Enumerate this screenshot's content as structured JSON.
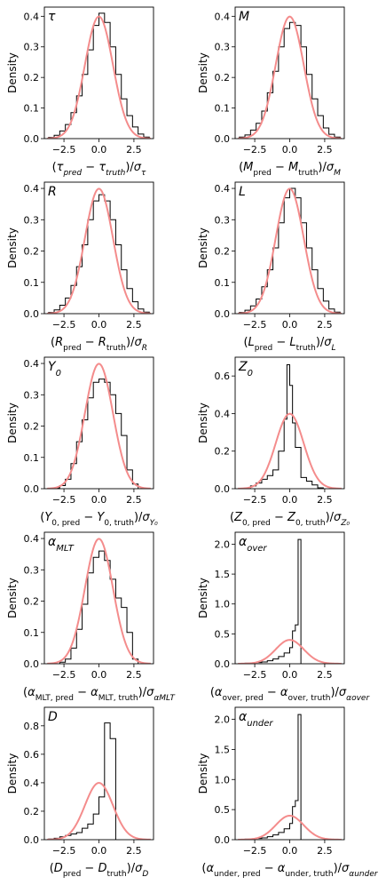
{
  "chart_data": [
    {
      "type": "histogram",
      "panel_label": "τ",
      "xlabel": "(τ_pred − τ_truth)/σ_τ",
      "ylabel": "Density",
      "xlim": [
        -3.9,
        3.9
      ],
      "ylim": [
        0,
        0.43
      ],
      "xticks": [
        -2.5,
        0.0,
        2.5
      ],
      "xtick_labels": [
        "−2.5",
        "0.0",
        "2.5"
      ],
      "yticks": [
        0,
        0.1,
        0.2,
        0.3,
        0.4
      ],
      "ytick_labels": [
        "0.0",
        "0.1",
        "0.2",
        "0.3",
        "0.4"
      ],
      "bin_edges": [
        -3.6,
        -3.2,
        -2.8,
        -2.4,
        -2.0,
        -1.6,
        -1.2,
        -0.8,
        -0.4,
        0.0,
        0.4,
        0.8,
        1.2,
        1.6,
        2.0,
        2.4,
        2.8,
        3.2,
        3.6
      ],
      "density": [
        0.004,
        0.011,
        0.025,
        0.046,
        0.085,
        0.14,
        0.21,
        0.29,
        0.37,
        0.41,
        0.38,
        0.3,
        0.21,
        0.13,
        0.075,
        0.038,
        0.015,
        0.005
      ],
      "gaussian": {
        "mean": 0,
        "sigma": 1,
        "color": "#f48c8c"
      }
    },
    {
      "type": "histogram",
      "panel_label": "M",
      "xlabel": "(M_pred − M_truth)/σ_M",
      "ylabel": "Density",
      "xlim": [
        -3.9,
        3.9
      ],
      "ylim": [
        0,
        0.43
      ],
      "xticks": [
        -2.5,
        0.0,
        2.5
      ],
      "xtick_labels": [
        "−2.5",
        "0.0",
        "2.5"
      ],
      "yticks": [
        0,
        0.1,
        0.2,
        0.3,
        0.4
      ],
      "ytick_labels": [
        "0.0",
        "0.1",
        "0.2",
        "0.3",
        "0.4"
      ],
      "bin_edges": [
        -3.6,
        -3.2,
        -2.8,
        -2.4,
        -2.0,
        -1.6,
        -1.2,
        -0.8,
        -0.4,
        0.0,
        0.4,
        0.8,
        1.2,
        1.6,
        2.0,
        2.4,
        2.8,
        3.2,
        3.6
      ],
      "density": [
        0.005,
        0.012,
        0.028,
        0.05,
        0.09,
        0.15,
        0.22,
        0.3,
        0.36,
        0.38,
        0.37,
        0.3,
        0.21,
        0.13,
        0.075,
        0.035,
        0.014,
        0.005
      ],
      "gaussian": {
        "mean": 0,
        "sigma": 1,
        "color": "#f48c8c"
      }
    },
    {
      "type": "histogram",
      "panel_label": "R",
      "xlabel": "(R_pred − R_truth)/σ_R",
      "ylabel": "Density",
      "xlim": [
        -3.9,
        3.9
      ],
      "ylim": [
        0,
        0.42
      ],
      "xticks": [
        -2.5,
        0.0,
        2.5
      ],
      "xtick_labels": [
        "−2.5",
        "0.0",
        "2.5"
      ],
      "yticks": [
        0,
        0.1,
        0.2,
        0.3,
        0.4
      ],
      "ytick_labels": [
        "0.0",
        "0.1",
        "0.2",
        "0.3",
        "0.4"
      ],
      "bin_edges": [
        -3.6,
        -3.2,
        -2.8,
        -2.4,
        -2.0,
        -1.6,
        -1.2,
        -0.8,
        -0.4,
        0.0,
        0.4,
        0.8,
        1.2,
        1.6,
        2.0,
        2.4,
        2.8,
        3.2,
        3.6
      ],
      "density": [
        0.004,
        0.012,
        0.027,
        0.05,
        0.09,
        0.15,
        0.22,
        0.3,
        0.36,
        0.38,
        0.36,
        0.3,
        0.22,
        0.14,
        0.08,
        0.038,
        0.015,
        0.005
      ],
      "gaussian": {
        "mean": 0,
        "sigma": 1,
        "color": "#f48c8c"
      }
    },
    {
      "type": "histogram",
      "panel_label": "L",
      "xlabel": "(L_pred − L_truth)/σ_L",
      "ylabel": "Density",
      "xlim": [
        -3.9,
        3.9
      ],
      "ylim": [
        0,
        0.42
      ],
      "xticks": [
        -2.5,
        0.0,
        2.5
      ],
      "xtick_labels": [
        "−2.5",
        "0.0",
        "2.5"
      ],
      "yticks": [
        0,
        0.1,
        0.2,
        0.3,
        0.4
      ],
      "ytick_labels": [
        "0.0",
        "0.1",
        "0.2",
        "0.3",
        "0.4"
      ],
      "bin_edges": [
        -3.6,
        -3.2,
        -2.8,
        -2.4,
        -2.0,
        -1.6,
        -1.2,
        -0.8,
        -0.4,
        0.0,
        0.4,
        0.8,
        1.2,
        1.6,
        2.0,
        2.4,
        2.8,
        3.2,
        3.6
      ],
      "density": [
        0.004,
        0.011,
        0.025,
        0.047,
        0.086,
        0.14,
        0.21,
        0.29,
        0.37,
        0.4,
        0.37,
        0.29,
        0.21,
        0.14,
        0.08,
        0.04,
        0.015,
        0.005
      ],
      "gaussian": {
        "mean": 0,
        "sigma": 1,
        "color": "#f48c8c"
      }
    },
    {
      "type": "histogram",
      "panel_label": "Y₀",
      "xlabel": "(Y_0,pred − Y_0,truth)/σ_Y0",
      "ylabel": "Density",
      "xlim": [
        -3.9,
        3.9
      ],
      "ylim": [
        0,
        0.42
      ],
      "xticks": [
        -2.5,
        0.0,
        2.5
      ],
      "xtick_labels": [
        "−2.5",
        "0.0",
        "2.5"
      ],
      "yticks": [
        0,
        0.1,
        0.2,
        0.3,
        0.4
      ],
      "ytick_labels": [
        "0.0",
        "0.1",
        "0.2",
        "0.3",
        "0.4"
      ],
      "bin_edges": [
        -3.6,
        -3.2,
        -2.8,
        -2.4,
        -2.0,
        -1.6,
        -1.2,
        -0.8,
        -0.4,
        0.0,
        0.4,
        0.8,
        1.2,
        1.6,
        2.0,
        2.4,
        2.8,
        3.2,
        3.6
      ],
      "density": [
        0.0,
        0.003,
        0.01,
        0.03,
        0.08,
        0.15,
        0.22,
        0.29,
        0.34,
        0.35,
        0.34,
        0.3,
        0.24,
        0.17,
        0.06,
        0.015,
        0.0,
        0.0
      ],
      "gaussian": {
        "mean": 0,
        "sigma": 1,
        "color": "#f48c8c"
      }
    },
    {
      "type": "histogram",
      "panel_label": "Z₀",
      "xlabel": "(Z_0,pred − Z_0,truth)/σ_Z0",
      "ylabel": "Density",
      "xlim": [
        -3.9,
        3.9
      ],
      "ylim": [
        0,
        0.7
      ],
      "xticks": [
        -2.5,
        0.0,
        2.5
      ],
      "xtick_labels": [
        "−2.5",
        "0.0",
        "2.5"
      ],
      "yticks": [
        0,
        0.2,
        0.4,
        0.6
      ],
      "ytick_labels": [
        "0.0",
        "0.2",
        "0.4",
        "0.6"
      ],
      "bin_edges": [
        -3.2,
        -2.8,
        -2.4,
        -2.0,
        -1.6,
        -1.2,
        -0.8,
        -0.4,
        -0.2,
        0.0,
        0.2,
        0.4,
        0.8,
        1.2,
        1.6,
        2.0,
        2.4
      ],
      "density": [
        0.005,
        0.015,
        0.03,
        0.05,
        0.07,
        0.1,
        0.2,
        0.37,
        0.66,
        0.55,
        0.35,
        0.22,
        0.06,
        0.04,
        0.02,
        0.005
      ],
      "gaussian": {
        "mean": 0,
        "sigma": 1,
        "color": "#f48c8c"
      }
    },
    {
      "type": "histogram",
      "panel_label": "α_MLT",
      "xlabel": "(α_MLT,pred − α_MLT,truth)/σ_αMLT",
      "ylabel": "Density",
      "xlim": [
        -3.9,
        3.9
      ],
      "ylim": [
        0,
        0.42
      ],
      "xticks": [
        -2.5,
        0.0,
        2.5
      ],
      "xtick_labels": [
        "−2.5",
        "0.0",
        "2.5"
      ],
      "yticks": [
        0,
        0.1,
        0.2,
        0.3,
        0.4
      ],
      "ytick_labels": [
        "0.0",
        "0.1",
        "0.2",
        "0.3",
        "0.4"
      ],
      "bin_edges": [
        -2.8,
        -2.4,
        -2.0,
        -1.6,
        -1.2,
        -0.8,
        -0.4,
        0.0,
        0.4,
        0.8,
        1.2,
        1.6,
        2.0,
        2.4,
        2.8
      ],
      "density": [
        0.005,
        0.015,
        0.05,
        0.11,
        0.19,
        0.29,
        0.34,
        0.36,
        0.33,
        0.27,
        0.21,
        0.18,
        0.1,
        0.015
      ],
      "gaussian": {
        "mean": 0,
        "sigma": 1,
        "color": "#f48c8c"
      }
    },
    {
      "type": "histogram",
      "panel_label": "α_over",
      "xlabel": "(α_over,pred − α_over,truth)/σ_αover",
      "ylabel": "Density",
      "xlim": [
        -3.9,
        3.9
      ],
      "ylim": [
        0,
        2.2
      ],
      "xticks": [
        -2.5,
        0.0,
        2.5
      ],
      "xtick_labels": [
        "−2.5",
        "0.0",
        "2.5"
      ],
      "yticks": [
        0,
        0.5,
        1.0,
        1.5,
        2.0
      ],
      "ytick_labels": [
        "0.0",
        "0.5",
        "1.0",
        "1.5",
        "2.0"
      ],
      "bin_edges": [
        -3.6,
        -3.2,
        -2.8,
        -2.4,
        -2.0,
        -1.6,
        -1.2,
        -0.8,
        -0.4,
        0.0,
        0.2,
        0.4,
        0.6,
        0.8
      ],
      "density": [
        0.005,
        0.01,
        0.015,
        0.02,
        0.03,
        0.05,
        0.08,
        0.12,
        0.18,
        0.27,
        0.55,
        0.65,
        2.08
      ],
      "gaussian": {
        "mean": 0,
        "sigma": 1,
        "color": "#f48c8c"
      }
    },
    {
      "type": "histogram",
      "panel_label": "D",
      "xlabel": "(D_pred − D_truth)/σ_D",
      "ylabel": "Density",
      "xlim": [
        -3.9,
        3.9
      ],
      "ylim": [
        0,
        0.93
      ],
      "xticks": [
        -2.5,
        0.0,
        2.5
      ],
      "xtick_labels": [
        "−2.5",
        "0.0",
        "2.5"
      ],
      "yticks": [
        0,
        0.2,
        0.4,
        0.6,
        0.8
      ],
      "ytick_labels": [
        "0.0",
        "0.2",
        "0.4",
        "0.6",
        "0.8"
      ],
      "bin_edges": [
        -3.6,
        -3.2,
        -2.8,
        -2.4,
        -2.0,
        -1.6,
        -1.2,
        -0.8,
        -0.4,
        0.0,
        0.4,
        0.8,
        1.2
      ],
      "density": [
        0.005,
        0.01,
        0.02,
        0.03,
        0.04,
        0.05,
        0.08,
        0.11,
        0.18,
        0.3,
        0.82,
        0.71
      ],
      "gaussian": {
        "mean": 0,
        "sigma": 1,
        "color": "#f48c8c"
      }
    },
    {
      "type": "histogram",
      "panel_label": "α_under",
      "xlabel": "(α_under,pred − α_under,truth)/σ_αunder",
      "ylabel": "Density",
      "xlim": [
        -3.9,
        3.9
      ],
      "ylim": [
        0,
        2.2
      ],
      "xticks": [
        -2.5,
        0.0,
        2.5
      ],
      "xtick_labels": [
        "−2.5",
        "0.0",
        "2.5"
      ],
      "yticks": [
        0,
        0.5,
        1.0,
        1.5,
        2.0
      ],
      "ytick_labels": [
        "0.0",
        "0.5",
        "1.0",
        "1.5",
        "2.0"
      ],
      "bin_edges": [
        -3.6,
        -3.2,
        -2.8,
        -2.4,
        -2.0,
        -1.6,
        -1.2,
        -0.8,
        -0.4,
        0.0,
        0.2,
        0.4,
        0.6,
        0.8
      ],
      "density": [
        0.005,
        0.01,
        0.015,
        0.02,
        0.03,
        0.05,
        0.08,
        0.12,
        0.18,
        0.27,
        0.55,
        0.65,
        2.08
      ],
      "gaussian": {
        "mean": 0,
        "sigma": 1,
        "color": "#f48c8c"
      }
    }
  ]
}
